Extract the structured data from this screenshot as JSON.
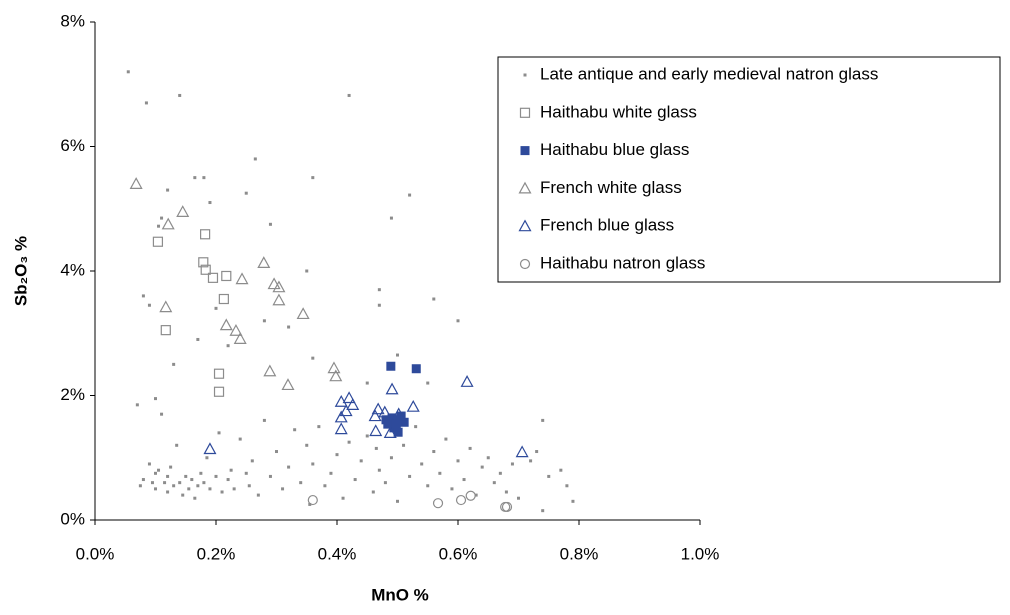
{
  "chart_data": {
    "type": "scatter",
    "xlabel": "MnO %",
    "ylabel": "Sb₂O₃ %",
    "xlim": [
      0,
      1.0
    ],
    "ylim": [
      0,
      8
    ],
    "xticks": [
      {
        "value": 0,
        "label": "0.0%"
      },
      {
        "value": 0.2,
        "label": "0.2%"
      },
      {
        "value": 0.4,
        "label": "0.4%"
      },
      {
        "value": 0.6,
        "label": "0.6%"
      },
      {
        "value": 0.8,
        "label": "0.8%"
      },
      {
        "value": 1.0,
        "label": "1.0%"
      }
    ],
    "yticks": [
      {
        "value": 0,
        "label": "0%"
      },
      {
        "value": 2,
        "label": "2%"
      },
      {
        "value": 4,
        "label": "4%"
      },
      {
        "value": 6,
        "label": "6%"
      },
      {
        "value": 8,
        "label": "8%"
      }
    ],
    "grid": false,
    "legend": "upper right",
    "series": [
      {
        "name": "Late antique and early medieval natron glass",
        "color": "#8c8c8c",
        "marker": "dot",
        "x": [
          0.055,
          0.085,
          0.14,
          0.42,
          0.165,
          0.265,
          0.36,
          0.52,
          0.49,
          0.25,
          0.12,
          0.18,
          0.19,
          0.29,
          0.35,
          0.08,
          0.09,
          0.105,
          0.11,
          0.47,
          0.47,
          0.56,
          0.6,
          0.2,
          0.22,
          0.17,
          0.28,
          0.32,
          0.36,
          0.13,
          0.07,
          0.1,
          0.5,
          0.45,
          0.55,
          0.74,
          0.075,
          0.08,
          0.09,
          0.095,
          0.1,
          0.1,
          0.105,
          0.11,
          0.115,
          0.12,
          0.12,
          0.125,
          0.13,
          0.135,
          0.14,
          0.145,
          0.15,
          0.155,
          0.16,
          0.165,
          0.17,
          0.175,
          0.18,
          0.185,
          0.19,
          0.2,
          0.205,
          0.21,
          0.22,
          0.225,
          0.23,
          0.24,
          0.25,
          0.255,
          0.26,
          0.27,
          0.28,
          0.29,
          0.3,
          0.31,
          0.32,
          0.33,
          0.34,
          0.35,
          0.355,
          0.36,
          0.37,
          0.38,
          0.39,
          0.4,
          0.41,
          0.42,
          0.43,
          0.44,
          0.45,
          0.46,
          0.465,
          0.47,
          0.48,
          0.49,
          0.5,
          0.51,
          0.52,
          0.53,
          0.54,
          0.55,
          0.56,
          0.57,
          0.58,
          0.59,
          0.6,
          0.61,
          0.62,
          0.63,
          0.64,
          0.65,
          0.66,
          0.67,
          0.68,
          0.69,
          0.7,
          0.72,
          0.73,
          0.74,
          0.75,
          0.77,
          0.78,
          0.79
        ],
        "values": [
          7.2,
          6.7,
          6.82,
          6.82,
          5.5,
          5.8,
          5.5,
          5.22,
          4.85,
          5.25,
          5.3,
          5.5,
          5.1,
          4.75,
          4.0,
          3.6,
          3.45,
          4.72,
          4.85,
          3.7,
          3.45,
          3.55,
          3.2,
          3.4,
          2.8,
          2.9,
          3.2,
          3.1,
          2.6,
          2.5,
          1.85,
          1.95,
          2.65,
          2.2,
          2.2,
          1.6,
          0.55,
          0.65,
          0.9,
          0.6,
          0.75,
          0.5,
          0.8,
          1.7,
          0.6,
          0.7,
          0.45,
          0.85,
          0.55,
          1.2,
          0.6,
          0.4,
          0.7,
          0.5,
          0.65,
          0.35,
          0.55,
          0.75,
          0.6,
          1.0,
          0.5,
          0.7,
          1.4,
          0.45,
          0.65,
          0.8,
          0.5,
          1.3,
          0.75,
          0.55,
          0.95,
          0.4,
          1.6,
          0.7,
          1.1,
          0.5,
          0.85,
          1.45,
          0.6,
          1.2,
          0.25,
          0.9,
          1.5,
          0.55,
          0.75,
          1.05,
          0.35,
          1.25,
          0.65,
          0.95,
          1.35,
          0.45,
          1.15,
          0.8,
          0.6,
          1.0,
          0.3,
          1.2,
          0.7,
          1.5,
          0.9,
          0.55,
          1.1,
          0.75,
          1.3,
          0.5,
          0.95,
          0.65,
          1.15,
          0.4,
          0.85,
          1.0,
          0.6,
          0.75,
          0.45,
          0.9,
          0.35,
          0.95,
          1.1,
          0.15,
          0.7,
          0.8,
          0.55,
          0.3
        ]
      },
      {
        "name": "Haithabu white glass",
        "color": "#8c8c8c",
        "marker": "square",
        "x": [
          0.104,
          0.117,
          0.182,
          0.179,
          0.183,
          0.195,
          0.217,
          0.213,
          0.205,
          0.205
        ],
        "values": [
          4.47,
          3.05,
          4.59,
          4.14,
          4.02,
          3.89,
          3.92,
          3.55,
          2.35,
          2.06
        ]
      },
      {
        "name": "Haithabu blue glass",
        "color": "#2e4a9b",
        "marker": "filled-square",
        "x": [
          0.489,
          0.531,
          0.481,
          0.491,
          0.501,
          0.511,
          0.494,
          0.501,
          0.484,
          0.506,
          0.498
        ],
        "values": [
          2.47,
          2.43,
          1.61,
          1.64,
          1.61,
          1.57,
          1.48,
          1.41,
          1.54,
          1.67,
          1.54
        ]
      },
      {
        "name": "French white glass",
        "color": "#8c8c8c",
        "marker": "triangle",
        "x": [
          0.068,
          0.121,
          0.145,
          0.117,
          0.217,
          0.233,
          0.24,
          0.243,
          0.279,
          0.296,
          0.304,
          0.304,
          0.344,
          0.289,
          0.319,
          0.395,
          0.398
        ],
        "values": [
          5.4,
          4.75,
          4.95,
          3.42,
          3.13,
          3.04,
          2.91,
          3.87,
          4.13,
          3.79,
          3.74,
          3.53,
          3.31,
          2.39,
          2.17,
          2.44,
          2.31
        ]
      },
      {
        "name": "French blue glass",
        "color": "#2e4a9b",
        "marker": "triangle",
        "x": [
          0.19,
          0.407,
          0.42,
          0.426,
          0.415,
          0.407,
          0.407,
          0.463,
          0.468,
          0.479,
          0.464,
          0.491,
          0.502,
          0.488,
          0.526,
          0.615,
          0.706
        ],
        "values": [
          1.14,
          1.9,
          1.96,
          1.85,
          1.75,
          1.65,
          1.46,
          1.67,
          1.78,
          1.73,
          1.43,
          2.1,
          1.7,
          1.4,
          1.82,
          2.22,
          1.09
        ]
      },
      {
        "name": "Haithabu natron glass",
        "color": "#8c8c8c",
        "marker": "circle",
        "x": [
          0.36,
          0.567,
          0.605,
          0.621,
          0.678,
          0.681
        ],
        "values": [
          0.32,
          0.27,
          0.32,
          0.39,
          0.21,
          0.21
        ]
      }
    ]
  }
}
